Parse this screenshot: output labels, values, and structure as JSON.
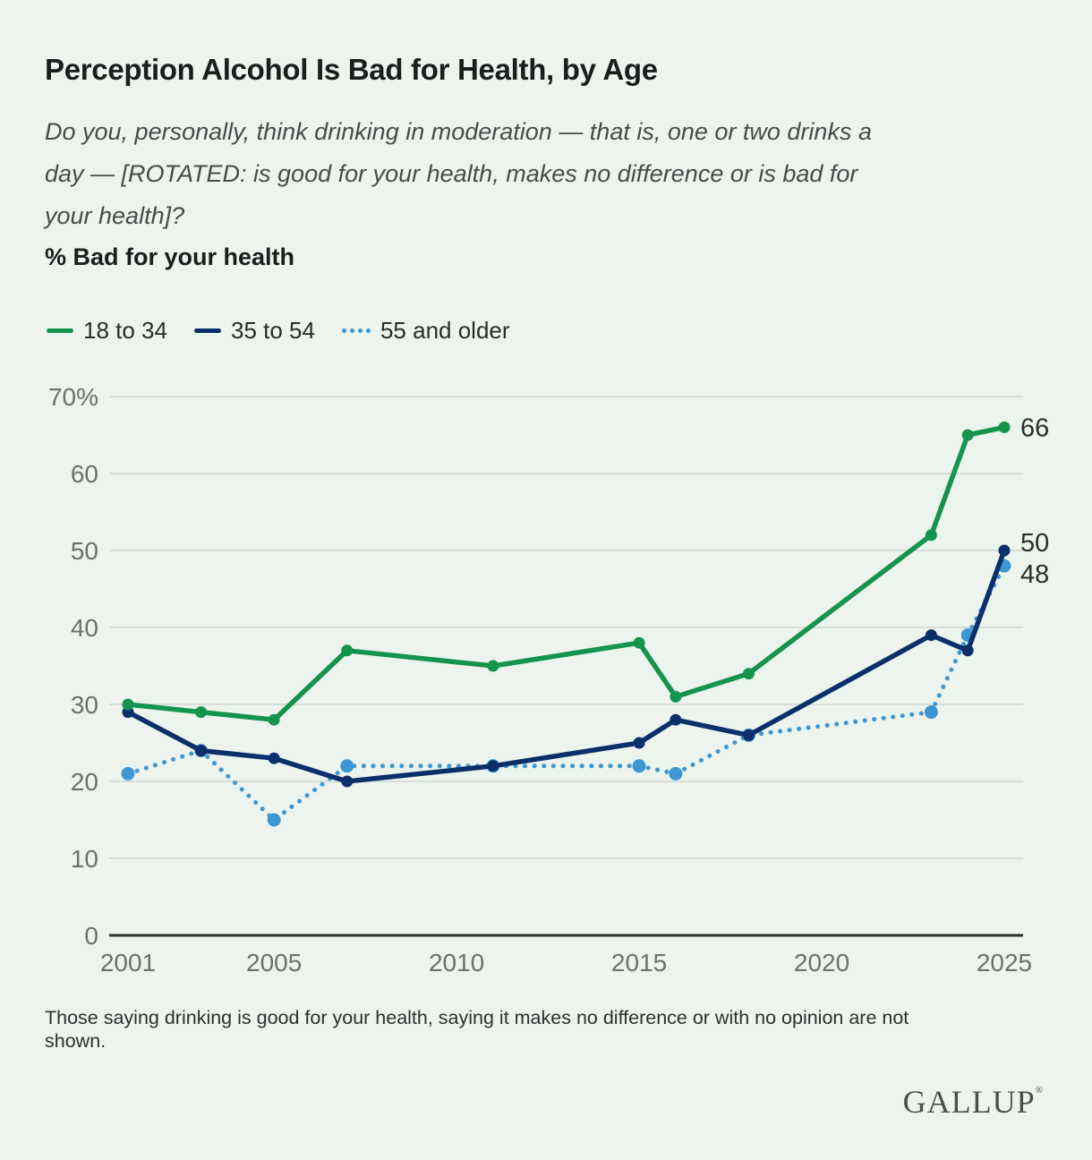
{
  "header": {
    "title": "Perception Alcohol Is Bad for Health, by Age",
    "subtitle_lines": [
      "Do you, personally, think drinking in moderation — that is, one or two drinks a",
      "day — [ROTATED: is good for your health, makes no difference or is bad for",
      "your health]?"
    ],
    "metric_label": "% Bad for your health"
  },
  "legend": {
    "items": [
      {
        "label": "18 to 34",
        "color": "#14944d",
        "style": "solid"
      },
      {
        "label": "35 to 54",
        "color": "#0b2f6b",
        "style": "solid"
      },
      {
        "label": "55 and older",
        "color": "#3e97d2",
        "style": "dotted"
      }
    ]
  },
  "chart_data": {
    "type": "line",
    "title": "Perception Alcohol Is Bad for Health, by Age",
    "ylabel": "% Bad for your health",
    "xlabel": "",
    "grid": true,
    "legend_position": "top",
    "x": [
      2001,
      2003,
      2005,
      2007,
      2011,
      2015,
      2016,
      2018,
      2023,
      2024,
      2025
    ],
    "series": [
      {
        "name": "55 and older",
        "color": "#3e97d2",
        "style": "dotted",
        "values": [
          21,
          24,
          15,
          22,
          22,
          22,
          21,
          26,
          29,
          39,
          48
        ],
        "end_label": "48",
        "label_dy": 9
      },
      {
        "name": "35 to 54",
        "color": "#0b2f6b",
        "style": "solid",
        "values": [
          29,
          24,
          23,
          20,
          22,
          25,
          28,
          26,
          39,
          37,
          50
        ],
        "end_label": "50",
        "label_dy": -9
      },
      {
        "name": "18 to 34",
        "color": "#14944d",
        "style": "solid",
        "values": [
          30,
          29,
          28,
          37,
          35,
          38,
          31,
          34,
          52,
          65,
          66
        ],
        "end_label": "66",
        "label_dy": 0
      }
    ],
    "xlim": [
      2001,
      2025
    ],
    "ylim": [
      0,
      70
    ],
    "xticks": [
      2001,
      2005,
      2010,
      2015,
      2020,
      2025
    ],
    "yticks": [
      0,
      10,
      20,
      30,
      40,
      50,
      60,
      70
    ],
    "ytick_labels": [
      "0",
      "10",
      "20",
      "30",
      "40",
      "50",
      "60",
      "70%"
    ]
  },
  "footnote": {
    "lines": [
      "Those saying drinking is good for your health, saying it makes no difference or with no opinion are not",
      "shown."
    ]
  },
  "branding": {
    "logo": "GALLUP",
    "registered": "®"
  }
}
